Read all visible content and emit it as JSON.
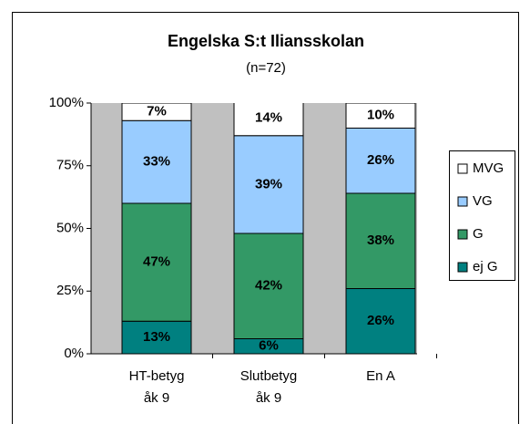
{
  "chart_data": {
    "type": "stacked_bar",
    "title": "Engelska S:t Iliansskolan",
    "subtitle": "(n=72)",
    "categories": [
      [
        "HT-betyg",
        "åk 9"
      ],
      [
        "Slutbetyg",
        "åk 9"
      ],
      [
        "En A"
      ]
    ],
    "series": [
      {
        "name": "ej G",
        "color": "#008080",
        "values": [
          13,
          6,
          26
        ],
        "value_labels": [
          "13%",
          "6%",
          "26%"
        ]
      },
      {
        "name": "G",
        "color": "#339966",
        "values": [
          47,
          42,
          38
        ],
        "value_labels": [
          "47%",
          "42%",
          "38%"
        ]
      },
      {
        "name": "VG",
        "color": "#99ccff",
        "values": [
          33,
          39,
          26
        ],
        "value_labels": [
          "33%",
          "39%",
          "26%"
        ]
      },
      {
        "name": "MVG",
        "color": "#ffffff",
        "values": [
          7,
          14,
          10
        ],
        "value_labels": [
          "7%",
          "14%",
          "10%"
        ]
      }
    ],
    "ylim": [
      0,
      100
    ],
    "yticks": [
      {
        "value": 0,
        "label": "0%"
      },
      {
        "value": 25,
        "label": "25%"
      },
      {
        "value": 50,
        "label": "50%"
      },
      {
        "value": 75,
        "label": "75%"
      },
      {
        "value": 100,
        "label": "100%"
      }
    ],
    "legend": "right"
  }
}
